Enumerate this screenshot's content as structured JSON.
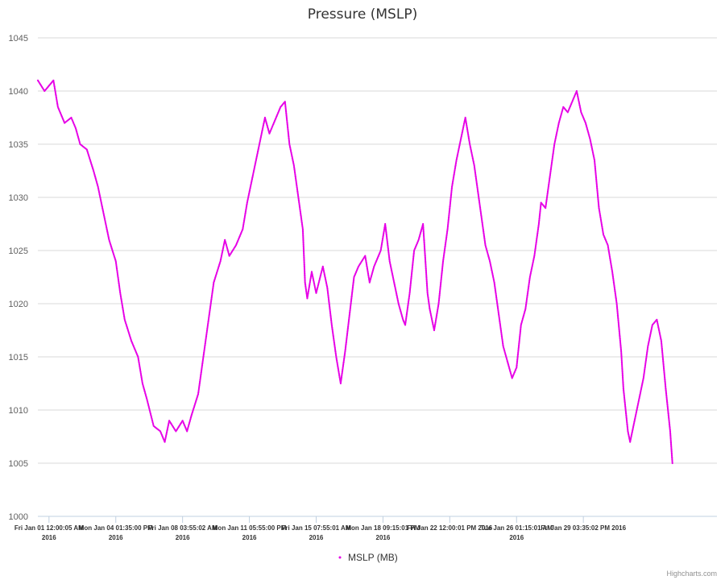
{
  "chart_data": {
    "type": "scatter",
    "title": "Pressure (MSLP)",
    "xlabel": "",
    "ylabel": "",
    "ylim": [
      1000,
      1045
    ],
    "yticks": [
      "1000",
      "1005",
      "1010",
      "1015",
      "1020",
      "1025",
      "1030",
      "1035",
      "1040",
      "1045"
    ],
    "xlim_days": [
      1.0,
      31.5
    ],
    "xticks": [
      {
        "day": 1.5,
        "line1": "Fri Jan 01 12:00:05 AM",
        "line2": "2016"
      },
      {
        "day": 4.5,
        "line1": "Mon Jan 04 01:35:00 PM",
        "line2": "2016"
      },
      {
        "day": 7.5,
        "line1": "Fri Jan 08 03:55:02 AM",
        "line2": "2016"
      },
      {
        "day": 10.5,
        "line1": "Mon Jan 11 05:55:00 PM",
        "line2": "2016"
      },
      {
        "day": 13.5,
        "line1": "Fri Jan 15 07:55:01 AM",
        "line2": "2016"
      },
      {
        "day": 16.5,
        "line1": "Mon Jan 18 09:15:01 PM",
        "line2": "2016"
      },
      {
        "day": 19.5,
        "line1": "Fri Jan 22 12:00:01 PM 2016",
        "line2": ""
      },
      {
        "day": 22.5,
        "line1": "Tue Jan 26 01:15:01 AM",
        "line2": "2016"
      },
      {
        "day": 25.5,
        "line1": "Fri Jan 29 03:35:02 PM 2016",
        "line2": ""
      }
    ],
    "grid": true,
    "legend_position": "bottom-center",
    "series": [
      {
        "name": "MSLP (MB)",
        "color": "#e600e6",
        "marker": "dot",
        "points": [
          [
            1.0,
            1041.0
          ],
          [
            1.3,
            1040.0
          ],
          [
            1.5,
            1040.5
          ],
          [
            1.7,
            1041.0
          ],
          [
            1.9,
            1038.5
          ],
          [
            2.2,
            1037.0
          ],
          [
            2.5,
            1037.5
          ],
          [
            2.7,
            1036.5
          ],
          [
            2.9,
            1035.0
          ],
          [
            3.2,
            1034.5
          ],
          [
            3.5,
            1032.5
          ],
          [
            3.7,
            1031.0
          ],
          [
            3.9,
            1029.0
          ],
          [
            4.2,
            1026.0
          ],
          [
            4.5,
            1024.0
          ],
          [
            4.7,
            1021.0
          ],
          [
            4.9,
            1018.5
          ],
          [
            5.2,
            1016.5
          ],
          [
            5.5,
            1015.0
          ],
          [
            5.7,
            1012.5
          ],
          [
            5.9,
            1011.0
          ],
          [
            6.2,
            1008.5
          ],
          [
            6.5,
            1008.0
          ],
          [
            6.7,
            1007.0
          ],
          [
            6.9,
            1009.0
          ],
          [
            7.2,
            1008.0
          ],
          [
            7.5,
            1009.0
          ],
          [
            7.7,
            1008.0
          ],
          [
            7.9,
            1009.5
          ],
          [
            8.2,
            1011.5
          ],
          [
            8.5,
            1016.0
          ],
          [
            8.7,
            1019.0
          ],
          [
            8.9,
            1022.0
          ],
          [
            9.2,
            1024.0
          ],
          [
            9.4,
            1026.0
          ],
          [
            9.6,
            1024.5
          ],
          [
            9.9,
            1025.5
          ],
          [
            10.2,
            1027.0
          ],
          [
            10.4,
            1029.5
          ],
          [
            10.6,
            1031.5
          ],
          [
            10.9,
            1034.5
          ],
          [
            11.2,
            1037.5
          ],
          [
            11.4,
            1036.0
          ],
          [
            11.6,
            1037.0
          ],
          [
            11.9,
            1038.5
          ],
          [
            12.1,
            1039.0
          ],
          [
            12.3,
            1035.0
          ],
          [
            12.5,
            1033.0
          ],
          [
            12.7,
            1030.0
          ],
          [
            12.9,
            1027.0
          ],
          [
            13.0,
            1022.0
          ],
          [
            13.1,
            1020.5
          ],
          [
            13.3,
            1023.0
          ],
          [
            13.5,
            1021.0
          ],
          [
            13.8,
            1023.5
          ],
          [
            14.0,
            1021.5
          ],
          [
            14.2,
            1018.0
          ],
          [
            14.4,
            1015.0
          ],
          [
            14.6,
            1012.5
          ],
          [
            14.8,
            1015.5
          ],
          [
            15.0,
            1019.0
          ],
          [
            15.2,
            1022.5
          ],
          [
            15.4,
            1023.5
          ],
          [
            15.7,
            1024.5
          ],
          [
            15.9,
            1022.0
          ],
          [
            16.1,
            1023.5
          ],
          [
            16.4,
            1025.0
          ],
          [
            16.6,
            1027.5
          ],
          [
            16.8,
            1024.0
          ],
          [
            17.0,
            1022.0
          ],
          [
            17.2,
            1020.0
          ],
          [
            17.4,
            1018.5
          ],
          [
            17.5,
            1018.0
          ],
          [
            17.7,
            1021.0
          ],
          [
            17.9,
            1025.0
          ],
          [
            18.1,
            1026.0
          ],
          [
            18.3,
            1027.5
          ],
          [
            18.5,
            1021.0
          ],
          [
            18.6,
            1019.5
          ],
          [
            18.8,
            1017.5
          ],
          [
            19.0,
            1020.0
          ],
          [
            19.2,
            1024.0
          ],
          [
            19.4,
            1027.0
          ],
          [
            19.6,
            1031.0
          ],
          [
            19.8,
            1033.5
          ],
          [
            20.0,
            1035.5
          ],
          [
            20.2,
            1037.5
          ],
          [
            20.4,
            1035.0
          ],
          [
            20.6,
            1033.0
          ],
          [
            20.8,
            1030.0
          ],
          [
            21.0,
            1027.0
          ],
          [
            21.1,
            1025.5
          ],
          [
            21.3,
            1024.0
          ],
          [
            21.5,
            1022.0
          ],
          [
            21.7,
            1019.0
          ],
          [
            21.9,
            1016.0
          ],
          [
            22.1,
            1014.5
          ],
          [
            22.3,
            1013.0
          ],
          [
            22.5,
            1014.0
          ],
          [
            22.7,
            1018.0
          ],
          [
            22.9,
            1019.5
          ],
          [
            23.1,
            1022.5
          ],
          [
            23.3,
            1024.5
          ],
          [
            23.5,
            1027.5
          ],
          [
            23.6,
            1029.5
          ],
          [
            23.8,
            1029.0
          ],
          [
            24.0,
            1032.0
          ],
          [
            24.2,
            1035.0
          ],
          [
            24.4,
            1037.0
          ],
          [
            24.6,
            1038.5
          ],
          [
            24.8,
            1038.0
          ],
          [
            25.0,
            1039.0
          ],
          [
            25.2,
            1040.0
          ],
          [
            25.4,
            1038.0
          ],
          [
            25.6,
            1037.0
          ],
          [
            25.8,
            1035.5
          ],
          [
            26.0,
            1033.5
          ],
          [
            26.2,
            1029.0
          ],
          [
            26.4,
            1026.5
          ],
          [
            26.6,
            1025.5
          ],
          [
            26.8,
            1023.0
          ],
          [
            27.0,
            1020.0
          ],
          [
            27.2,
            1015.5
          ],
          [
            27.3,
            1012.0
          ],
          [
            27.5,
            1008.0
          ],
          [
            27.6,
            1007.0
          ],
          [
            27.8,
            1009.0
          ],
          [
            28.0,
            1011.0
          ],
          [
            28.2,
            1013.0
          ],
          [
            28.4,
            1016.0
          ],
          [
            28.6,
            1018.0
          ],
          [
            28.8,
            1018.5
          ],
          [
            29.0,
            1016.5
          ],
          [
            29.2,
            1012.0
          ],
          [
            29.4,
            1008.0
          ],
          [
            29.5,
            1005.0
          ]
        ]
      }
    ]
  },
  "credit": "Highcharts.com"
}
